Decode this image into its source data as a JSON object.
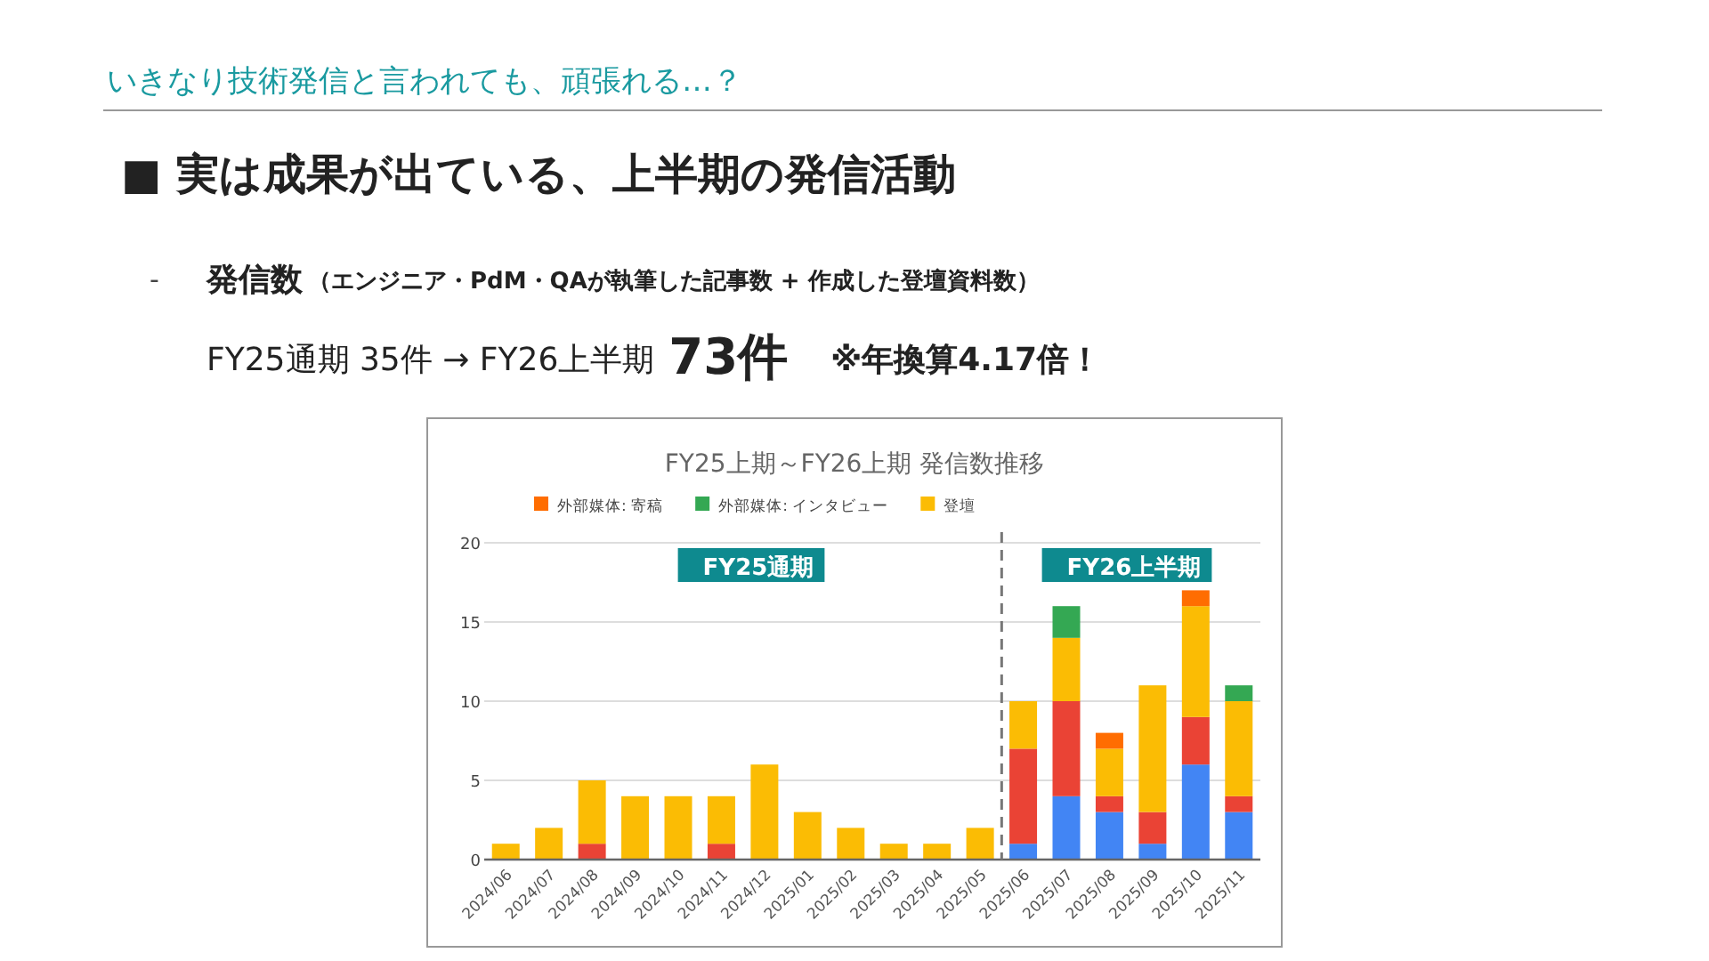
{
  "chart_data": {
    "type": "bar",
    "title": "FY25上期～FY26上期 発信数推移",
    "annotations": [
      "いきなり技術発信と言われても、頑張れる…？",
      "■ 実は成果が出ている、上半期の発信活動",
      "-",
      "発信数",
      "（エンジニア・PdM・QAが執筆した記事数 + 作成した登壇資料数）",
      "FY25通期 35件 → FY26上半期",
      "73件",
      "※年換算4.17倍！",
      "FY25通期",
      "FY26上半期"
    ],
    "categories": [
      "2024/06",
      "2024/07",
      "2024/08",
      "2024/09",
      "2024/10",
      "2024/11",
      "2024/12",
      "2025/01",
      "2025/02",
      "2025/03",
      "2025/04",
      "2025/05",
      "2025/06",
      "2025/07",
      "2025/08",
      "2025/09",
      "2025/10",
      "2025/11"
    ],
    "stacked": true,
    "series": [
      {
        "color": "#4285f4",
        "values": [
          0,
          0,
          0,
          0,
          0,
          0,
          0,
          0,
          0,
          0,
          0,
          0,
          1,
          4,
          3,
          1,
          6,
          3
        ]
      },
      {
        "color": "#ea4335",
        "values": [
          0,
          0,
          1,
          0,
          0,
          1,
          0,
          0,
          0,
          0,
          0,
          0,
          6,
          6,
          1,
          2,
          3,
          1
        ]
      },
      {
        "name": "登壇",
        "color": "#fbbc04",
        "values": [
          1,
          2,
          4,
          4,
          4,
          3,
          6,
          3,
          2,
          1,
          1,
          2,
          3,
          4,
          3,
          8,
          7,
          6
        ]
      },
      {
        "name": "外部媒体: インタビュー",
        "color": "#34a853",
        "values": [
          0,
          0,
          0,
          0,
          0,
          0,
          0,
          0,
          0,
          0,
          0,
          0,
          0,
          2,
          0,
          0,
          0,
          1
        ]
      },
      {
        "name": "外部媒体: 寄稿",
        "color": "#ff6d01",
        "values": [
          0,
          0,
          0,
          0,
          0,
          0,
          0,
          0,
          0,
          0,
          0,
          0,
          0,
          0,
          1,
          0,
          1,
          0
        ]
      }
    ],
    "ylim": [
      0,
      20
    ],
    "yticks": [
      0,
      5,
      10,
      15,
      20
    ],
    "grid": "y",
    "legend": "top",
    "ref_lines": [
      {
        "axis": "x",
        "value": "2025/06",
        "line_style": "dashed",
        "color": "#777777"
      }
    ]
  }
}
